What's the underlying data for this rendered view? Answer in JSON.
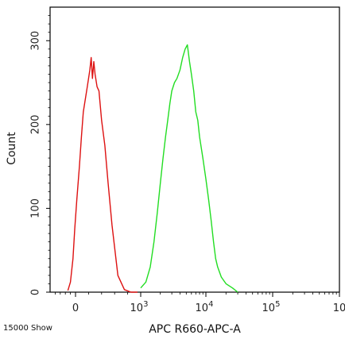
{
  "chart_data": {
    "type": "line",
    "title": "",
    "xlabel": "APC R660-APC-A",
    "ylabel": "Count",
    "x_scale": "biexponential",
    "ylim": [
      0,
      340
    ],
    "y_ticks": [
      {
        "value": 0,
        "label": "0"
      },
      {
        "value": 100,
        "label": "100"
      },
      {
        "value": 200,
        "label": "200"
      },
      {
        "value": 300,
        "label": "300"
      }
    ],
    "x_ticks": [
      {
        "value": 0,
        "label": "0",
        "sup": ""
      },
      {
        "value": 1000,
        "label": "10",
        "sup": "3"
      },
      {
        "value": 10000,
        "label": "10",
        "sup": "4"
      },
      {
        "value": 100000,
        "label": "10",
        "sup": "5"
      },
      {
        "value": 1000000,
        "label": "10",
        "sup": ""
      }
    ],
    "grid": false,
    "series": [
      {
        "color": "#dd1111",
        "x": [
          -300,
          -200,
          -100,
          -30,
          20,
          60,
          90,
          120,
          150,
          180,
          200,
          220,
          240,
          260,
          280,
          300,
          330,
          360,
          400,
          450,
          500,
          560,
          650,
          750,
          850,
          950
        ],
        "y": [
          2,
          12,
          40,
          75,
          110,
          150,
          185,
          215,
          230,
          245,
          255,
          265,
          280,
          255,
          275,
          260,
          245,
          240,
          205,
          175,
          130,
          80,
          20,
          3,
          0,
          0
        ]
      },
      {
        "color": "#22dd22",
        "x": [
          1000,
          1200,
          1400,
          1600,
          1800,
          2000,
          2200,
          2400,
          2600,
          2800,
          3000,
          3300,
          3600,
          4000,
          4400,
          4800,
          5200,
          5600,
          6000,
          6500,
          7000,
          7500,
          8000,
          9000,
          10000,
          11000,
          12000,
          13000,
          14000,
          15000,
          17000,
          20000,
          25000,
          30000
        ],
        "y": [
          5,
          12,
          30,
          60,
          95,
          130,
          160,
          185,
          205,
          225,
          240,
          250,
          255,
          265,
          280,
          290,
          295,
          275,
          260,
          240,
          215,
          205,
          185,
          160,
          135,
          110,
          85,
          60,
          40,
          30,
          18,
          10,
          5,
          0
        ]
      }
    ]
  },
  "footer": {
    "left_label": "15000 Show"
  }
}
